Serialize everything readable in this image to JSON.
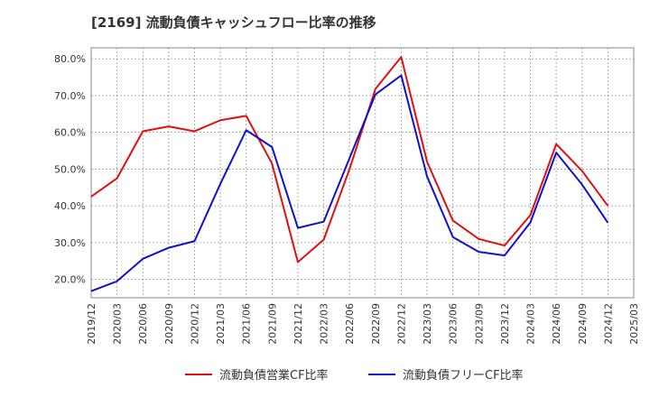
{
  "chart_data": {
    "type": "line",
    "title": "[2169]  流動負債キャッシュフロー比率の推移",
    "x": [
      "2019/12",
      "2020/03",
      "2020/06",
      "2020/09",
      "2020/12",
      "2021/03",
      "2021/06",
      "2021/09",
      "2021/12",
      "2022/03",
      "2022/06",
      "2022/09",
      "2022/12",
      "2023/03",
      "2023/06",
      "2023/09",
      "2023/12",
      "2024/03",
      "2024/06",
      "2024/09",
      "2024/12",
      "2025/03"
    ],
    "y_ticks": [
      "20.0%",
      "30.0%",
      "40.0%",
      "50.0%",
      "60.0%",
      "70.0%",
      "80.0%"
    ],
    "ylim": [
      15,
      83
    ],
    "grid": true,
    "legend_position": "bottom",
    "series": [
      {
        "name": "流動負債営業CF比率",
        "color": "#dd1111",
        "values": [
          42.5,
          47.5,
          60.3,
          61.6,
          60.3,
          63.3,
          64.5,
          51.5,
          24.7,
          30.8,
          50.0,
          71.8,
          80.5,
          52.0,
          36.0,
          31.0,
          29.2,
          37.5,
          56.8,
          49.5,
          40.0,
          null
        ]
      },
      {
        "name": "流動負債フリーCF比率",
        "color": "#1111cc",
        "values": [
          16.8,
          19.5,
          25.6,
          28.6,
          30.4,
          46.0,
          60.6,
          56.0,
          34.0,
          35.7,
          53.0,
          70.3,
          75.5,
          48.0,
          31.5,
          27.5,
          26.5,
          35.5,
          54.5,
          45.8,
          35.4,
          null
        ]
      }
    ]
  }
}
